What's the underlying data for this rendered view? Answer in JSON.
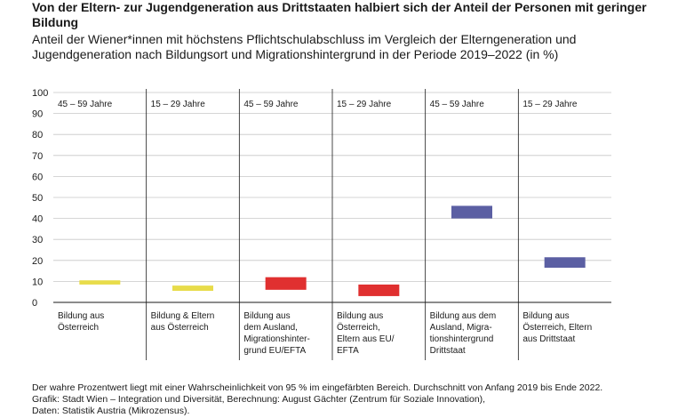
{
  "title": "Von der Eltern- zur Jugendgeneration aus Drittstaaten halbiert sich der Anteil der Personen mit geringer Bildung",
  "subtitle": "Anteil der Wiener*innen mit höchstens Pflichtschulabschluss im Vergleich der Elterngeneration und Jugendgeneration nach Bildungsort und Migrationshintergrund in der Periode 2019–2022 (in %)",
  "footer": {
    "note": "Der wahre Prozentwert liegt mit einer Wahrscheinlichkeit von 95 % im eingefärbten Bereich. Durchschnitt von Anfang 2019 bis Ende 2022.",
    "graphic": "Grafik: Stadt Wien – Integration und Diversität, Berechnung: August Gächter (Zentrum für Soziale Innovation),",
    "data": "Daten: Statistik Austria (Mikrozensus)."
  },
  "chart_data": {
    "type": "range-bar",
    "ylim": [
      0,
      100
    ],
    "yticks": [
      0,
      10,
      20,
      30,
      40,
      50,
      60,
      70,
      80,
      90,
      100
    ],
    "panels": [
      {
        "age_groups": [
          "45 – 59 Jahre",
          "15 – 29 Jahre"
        ],
        "items": [
          {
            "label": [
              "Bildung aus",
              "Österreich"
            ],
            "low": 8.5,
            "high": 10.5,
            "color": "#e8dc4a"
          },
          {
            "label": [
              "Bildung & Eltern",
              "aus Österreich"
            ],
            "low": 5.5,
            "high": 8.0,
            "color": "#e8dc4a"
          }
        ]
      },
      {
        "age_groups": [
          "45 – 59 Jahre",
          "15 – 29 Jahre"
        ],
        "items": [
          {
            "label": [
              "Bildung aus",
              "dem Ausland,",
              "Migrationshinter-",
              "grund EU/EFTA"
            ],
            "low": 6.0,
            "high": 12.0,
            "color": "#e03030"
          },
          {
            "label": [
              "Bildung aus",
              "Österreich,",
              "Eltern aus EU/",
              "EFTA"
            ],
            "low": 3.0,
            "high": 8.5,
            "color": "#e03030"
          }
        ]
      },
      {
        "age_groups": [
          "45 – 59 Jahre",
          "15 – 29 Jahre"
        ],
        "items": [
          {
            "label": [
              "Bildung aus dem",
              "Ausland, Migra-",
              "tionshintergrund",
              "Drittstaat"
            ],
            "low": 40.0,
            "high": 46.0,
            "color": "#5b5fa3"
          },
          {
            "label": [
              "Bildung aus",
              "Österreich, Eltern",
              "aus Drittstaat"
            ],
            "low": 16.5,
            "high": 21.5,
            "color": "#5b5fa3"
          }
        ]
      }
    ]
  }
}
